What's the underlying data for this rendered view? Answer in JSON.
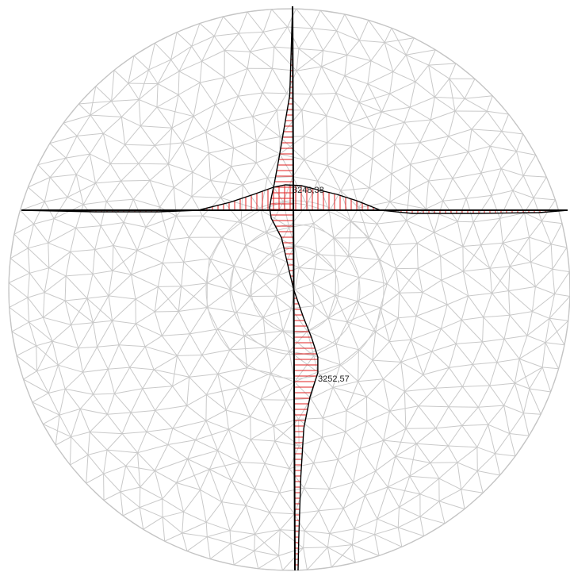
{
  "colors": {
    "background": "#ffffff",
    "mesh": "#c9c9c9",
    "diagram_fill": "#e02020",
    "diagram_outline": "#000000",
    "axis": "#000000",
    "label": "#222222"
  },
  "labels": {
    "horizontal_peak": "3248,38",
    "vertical_peak": "3252,57"
  }
}
